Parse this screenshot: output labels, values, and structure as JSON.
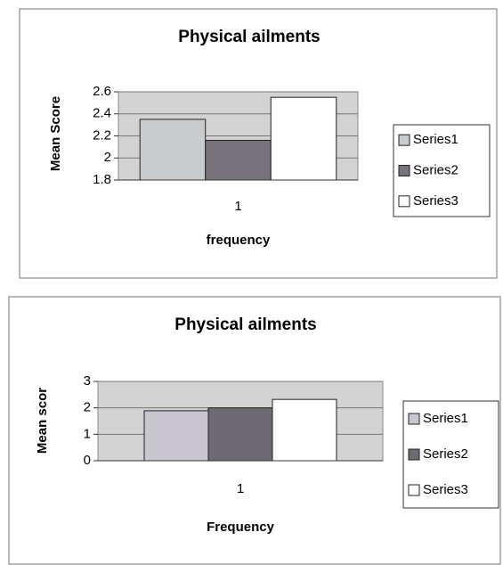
{
  "chart_data": [
    {
      "type": "bar",
      "title": "Physical ailments",
      "x_label": "frequency",
      "y_label": "Mean Score",
      "categories": [
        "1"
      ],
      "series": [
        {
          "name": "Series1",
          "color": "#c9ccce",
          "values": [
            2.35
          ]
        },
        {
          "name": "Series2",
          "color": "#78737b",
          "values": [
            2.16
          ]
        },
        {
          "name": "Series3",
          "color": "#ffffff",
          "values": [
            2.55
          ]
        }
      ],
      "ylim": [
        1.8,
        2.6
      ],
      "yticks": [
        1.8,
        2,
        2.2,
        2.4,
        2.6
      ],
      "grid": true,
      "legend": "right"
    },
    {
      "type": "bar",
      "title": "Physical ailments",
      "x_label": "Frequency",
      "y_label": "Mean scor",
      "categories": [
        "1"
      ],
      "series": [
        {
          "name": "Series1",
          "color": "#c9c6d2",
          "values": [
            1.89
          ]
        },
        {
          "name": "Series2",
          "color": "#6e6a72",
          "values": [
            2.0
          ]
        },
        {
          "name": "Series3",
          "color": "#ffffff",
          "values": [
            2.32
          ]
        }
      ],
      "ylim": [
        0,
        3
      ],
      "yticks": [
        0,
        1,
        2,
        3
      ],
      "grid": true,
      "legend": "right"
    }
  ]
}
